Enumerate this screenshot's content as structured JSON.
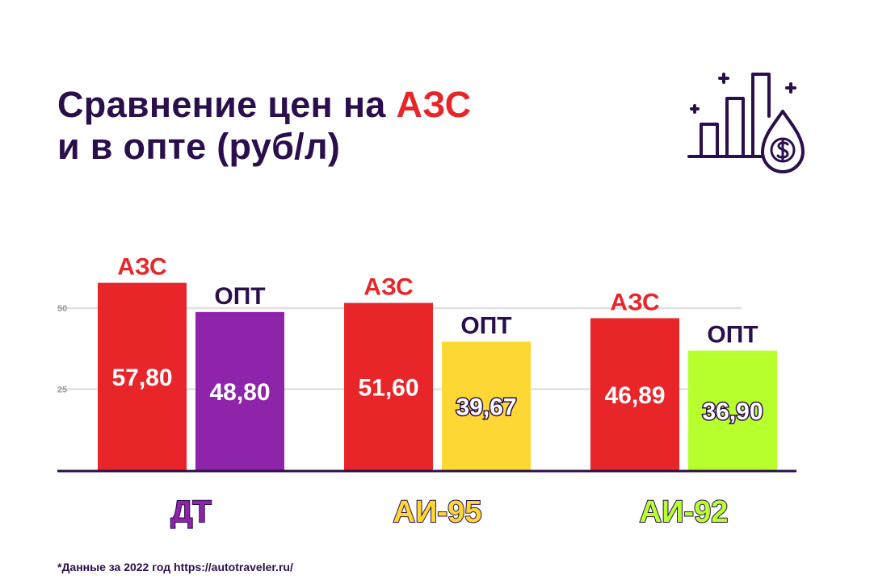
{
  "title": {
    "line1_prefix": "Сравнение цен на ",
    "line1_accent": "АЗС",
    "line2": "и в опте (руб/л)"
  },
  "icon": "rising-bars-fuel-drop-dollar-icon",
  "footnote": "*Данные за 2022 год https://autotraveler.ru/",
  "colors": {
    "title": "#2a0f4c",
    "accent": "#e8262a",
    "dt_opt": "#8e24aa",
    "ai95_opt": "#fdd835",
    "ai92_opt": "#b8ff2e",
    "grid": "#e0e0e0",
    "axis": "#2a0f4c"
  },
  "chart_data": {
    "type": "bar",
    "categories": [
      "ДТ",
      "АИ-95",
      "АИ-92"
    ],
    "yticks": [
      25,
      50
    ],
    "ylim": [
      0,
      60
    ],
    "grid": true,
    "groups": [
      {
        "category": "ДТ",
        "category_color": "#8e24aa",
        "bars": [
          {
            "label": "АЗС",
            "value": 57.8,
            "display": "57,80",
            "color": "#e8262a",
            "label_color": "#e8262a",
            "outlined": false
          },
          {
            "label": "ОПТ",
            "value": 48.8,
            "display": "48,80",
            "color": "#8e24aa",
            "label_color": "#2a0f4c",
            "outlined": false
          }
        ]
      },
      {
        "category": "АИ-95",
        "category_color": "#fdd835",
        "bars": [
          {
            "label": "АЗС",
            "value": 51.6,
            "display": "51,60",
            "color": "#e8262a",
            "label_color": "#e8262a",
            "outlined": false
          },
          {
            "label": "ОПТ",
            "value": 39.67,
            "display": "39,67",
            "color": "#fdd835",
            "label_color": "#2a0f4c",
            "outlined": true
          }
        ]
      },
      {
        "category": "АИ-92",
        "category_color": "#b8ff2e",
        "bars": [
          {
            "label": "АЗС",
            "value": 46.89,
            "display": "46,89",
            "color": "#e8262a",
            "label_color": "#e8262a",
            "outlined": false
          },
          {
            "label": "ОПТ",
            "value": 36.9,
            "display": "36,90",
            "color": "#b8ff2e",
            "label_color": "#2a0f4c",
            "outlined": true
          }
        ]
      }
    ]
  }
}
